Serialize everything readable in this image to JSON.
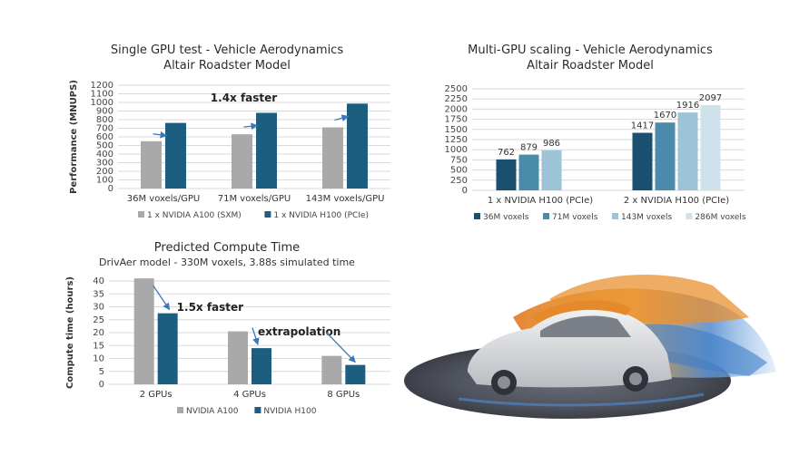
{
  "colors": {
    "gray": "#a9a9a9",
    "blue": "#1b5e80",
    "shade1": "#1a4f70",
    "shade2": "#4a8aaa",
    "shade3": "#9cc3d6",
    "shade4": "#cfe1ea",
    "arrow": "#3b78b8",
    "grid": "#d9d9d9"
  },
  "chart_data": [
    {
      "type": "bar",
      "title": "Single GPU test - Vehicle Aerodynamics",
      "subtitle": "Altair Roadster Model",
      "ylabel": "Performance (MNUPS)",
      "xlabel": "",
      "ylim": [
        0,
        1200
      ],
      "yticks": [
        0,
        100,
        200,
        300,
        400,
        500,
        600,
        700,
        800,
        900,
        1000,
        1100,
        1200
      ],
      "grid": true,
      "legend": "bottom",
      "categories": [
        "36M voxels/GPU",
        "71M voxels/GPU",
        "143M voxels/GPU"
      ],
      "series": [
        {
          "name": "1 x NVIDIA A100 (SXM)",
          "values": [
            550,
            630,
            710
          ]
        },
        {
          "name": "1 x NVIDIA H100 (PCIe)",
          "values": [
            762,
            879,
            986
          ]
        }
      ],
      "annotation": "1.4x faster"
    },
    {
      "type": "bar",
      "title": "Multi-GPU scaling - Vehicle Aerodynamics",
      "subtitle": "Altair Roadster Model",
      "ylabel": "",
      "xlabel": "",
      "ylim": [
        0,
        2500
      ],
      "yticks": [
        0,
        250,
        500,
        750,
        1000,
        1250,
        1500,
        1750,
        2000,
        2250,
        2500
      ],
      "grid": true,
      "legend": "bottom",
      "categories": [
        "1 x NVIDIA H100 (PCIe)",
        "2 x NVIDIA H100 (PCIe)"
      ],
      "series": [
        {
          "name": "36M voxels",
          "values": [
            762,
            1417
          ]
        },
        {
          "name": "71M voxels",
          "values": [
            879,
            1670
          ]
        },
        {
          "name": "143M voxels",
          "values": [
            986,
            1916
          ]
        },
        {
          "name": "286M voxels",
          "values": [
            null,
            2097
          ]
        }
      ],
      "data_labels": [
        [
          "762",
          "1417"
        ],
        [
          "879",
          "1670"
        ],
        [
          "986",
          "1916"
        ],
        [
          "",
          "2097"
        ]
      ]
    },
    {
      "type": "bar",
      "title": "Predicted Compute Time",
      "subtitle": "DrivAer model - 330M voxels, 3.88s simulated time",
      "ylabel": "Compute time (hours)",
      "xlabel": "",
      "ylim": [
        0,
        40
      ],
      "yticks": [
        0,
        5,
        10,
        15,
        20,
        25,
        30,
        35,
        40
      ],
      "grid": true,
      "legend": "bottom",
      "categories": [
        "2 GPUs",
        "4 GPUs",
        "8 GPUs"
      ],
      "series": [
        {
          "name": "NVIDIA A100",
          "values": [
            41,
            20.5,
            11
          ]
        },
        {
          "name": "NVIDIA H100",
          "values": [
            27.5,
            14,
            7.5
          ]
        }
      ],
      "annotations": [
        "1.5x faster",
        "extrapolation"
      ]
    }
  ],
  "image": {
    "icon": "car-airflow-simulation-icon"
  }
}
